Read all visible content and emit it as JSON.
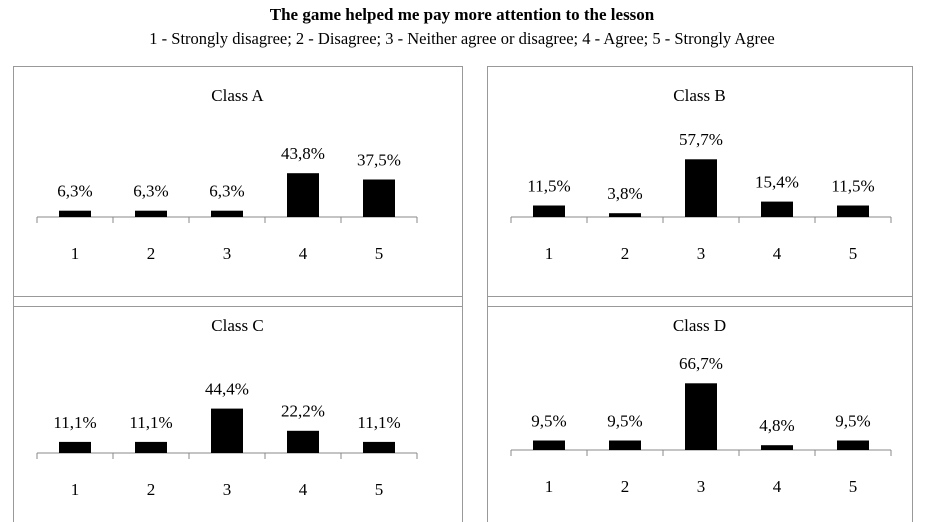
{
  "title": "The game helped me pay more attention to the lesson",
  "subtitle": "1 - Strongly disagree; 2 - Disagree; 3 - Neither agree or disagree; 4 - Agree; 5 - Strongly Agree",
  "chart_data": [
    {
      "type": "bar",
      "title": "Class A",
      "categories": [
        "1",
        "2",
        "3",
        "4",
        "5"
      ],
      "values": [
        6.3,
        6.3,
        6.3,
        43.8,
        37.5
      ],
      "value_labels": [
        "6,3%",
        "6,3%",
        "6,3%",
        "43,8%",
        "37,5%"
      ],
      "color": "#000000"
    },
    {
      "type": "bar",
      "title": "Class B",
      "categories": [
        "1",
        "2",
        "3",
        "4",
        "5"
      ],
      "values": [
        11.5,
        3.8,
        57.7,
        15.4,
        11.5
      ],
      "value_labels": [
        "11,5%",
        "3,8%",
        "57,7%",
        "15,4%",
        "11,5%"
      ],
      "color": "#000000"
    },
    {
      "type": "bar",
      "title": "Class C",
      "categories": [
        "1",
        "2",
        "3",
        "4",
        "5"
      ],
      "values": [
        11.1,
        11.1,
        44.4,
        22.2,
        11.1
      ],
      "value_labels": [
        "11,1%",
        "11,1%",
        "44,4%",
        "22,2%",
        "11,1%"
      ],
      "color": "#000000"
    },
    {
      "type": "bar",
      "title": "Class D",
      "categories": [
        "1",
        "2",
        "3",
        "4",
        "5"
      ],
      "values": [
        9.5,
        9.5,
        66.7,
        4.8,
        9.5
      ],
      "value_labels": [
        "9,5%",
        "9,5%",
        "66,7%",
        "4,8%",
        "9,5%"
      ],
      "color": "#000000"
    }
  ]
}
